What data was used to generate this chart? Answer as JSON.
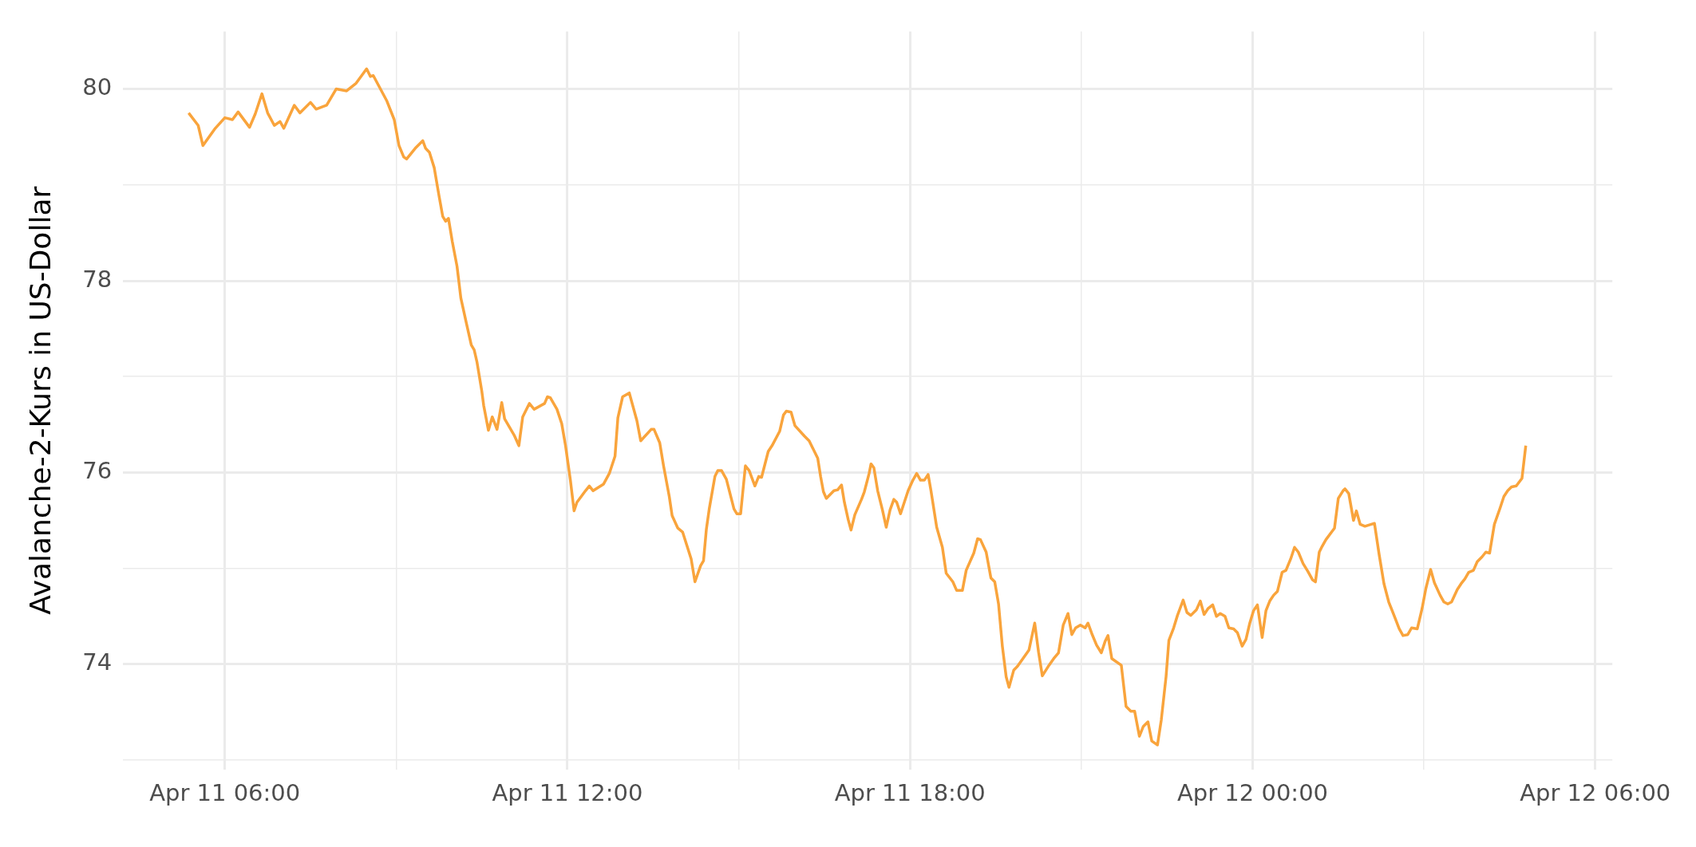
{
  "chart_data": {
    "type": "line",
    "ylabel": "Avalanche-2-Kurs in US-Dollar",
    "x": [
      "--04-11T05:22",
      "--04-11T05:32",
      "--04-11T05:37",
      "--04-11T05:50",
      "--04-11T06:00",
      "--04-11T06:08",
      "--04-11T06:14",
      "--04-11T06:26",
      "--04-11T06:32",
      "--04-11T06:39",
      "--04-11T06:45",
      "--04-11T06:52",
      "--04-11T06:58",
      "--04-11T07:02",
      "--04-11T07:13",
      "--04-11T07:19",
      "--04-11T07:30",
      "--04-11T07:36",
      "--04-11T07:47",
      "--04-11T07:57",
      "--04-11T08:08",
      "--04-11T08:18",
      "--04-11T08:29",
      "--04-11T08:33",
      "--04-11T08:36",
      "--04-11T08:50",
      "--04-11T08:58",
      "--04-11T09:03",
      "--04-11T09:08",
      "--04-11T09:11",
      "--04-11T09:20",
      "--04-11T09:28",
      "--04-11T09:31",
      "--04-11T09:35",
      "--04-11T09:40",
      "--04-11T09:45",
      "--04-11T09:49",
      "--04-11T09:52",
      "--04-11T09:55",
      "--04-11T09:59",
      "--04-11T10:04",
      "--04-11T10:08",
      "--04-11T10:14",
      "--04-11T10:19",
      "--04-11T10:22",
      "--04-11T10:25",
      "--04-11T10:30",
      "--04-11T10:32",
      "--04-11T10:37",
      "--04-11T10:41",
      "--04-11T10:46",
      "--04-11T10:51",
      "--04-11T10:54",
      "--04-11T11:04",
      "--04-11T11:09",
      "--04-11T11:13",
      "--04-11T11:20",
      "--04-11T11:25",
      "--04-11T11:36",
      "--04-11T11:39",
      "--04-11T11:42",
      "--04-11T11:49",
      "--04-11T11:54",
      "--04-11T11:58",
      "--04-11T12:03",
      "--04-11T12:07",
      "--04-11T12:10",
      "--04-11T12:19",
      "--04-11T12:23",
      "--04-11T12:27",
      "--04-11T12:38",
      "--04-11T12:44",
      "--04-11T12:50",
      "--04-11T12:53",
      "--04-11T12:58",
      "--04-11T13:05",
      "--04-11T13:13",
      "--04-11T13:17",
      "--04-11T13:28",
      "--04-11T13:31",
      "--04-11T13:37",
      "--04-11T13:41",
      "--04-11T13:47",
      "--04-11T13:50",
      "--04-11T13:56",
      "--04-11T14:01",
      "--04-11T14:10",
      "--04-11T14:14",
      "--04-11T14:20",
      "--04-11T14:23",
      "--04-11T14:26",
      "--04-11T14:29",
      "--04-11T14:35",
      "--04-11T14:38",
      "--04-11T14:42",
      "--04-11T14:47",
      "--04-11T14:55",
      "--04-11T14:58",
      "--04-11T15:02",
      "--04-11T15:07",
      "--04-11T15:11",
      "--04-11T15:17",
      "--04-11T15:21",
      "--04-11T15:24",
      "--04-11T15:31",
      "--04-11T15:35",
      "--04-11T15:43",
      "--04-11T15:47",
      "--04-11T15:50",
      "--04-11T15:55",
      "--04-11T15:59",
      "--04-11T16:09",
      "--04-11T16:14",
      "--04-11T16:23",
      "--04-11T16:26",
      "--04-11T16:29",
      "--04-11T16:32",
      "--04-11T16:40",
      "--04-11T16:44",
      "--04-11T16:48",
      "--04-11T16:51",
      "--04-11T16:55",
      "--04-11T16:58",
      "--04-11T17:02",
      "--04-11T17:09",
      "--04-11T17:12",
      "--04-11T17:17",
      "--04-11T17:19",
      "--04-11T17:22",
      "--04-11T17:26",
      "--04-11T17:31",
      "--04-11T17:35",
      "--04-11T17:39",
      "--04-11T17:43",
      "--04-11T17:46",
      "--04-11T17:50",
      "--04-11T17:58",
      "--04-11T18:03",
      "--04-11T18:07",
      "--04-11T18:11",
      "--04-11T18:15",
      "--04-11T18:19",
      "--04-11T18:22",
      "--04-11T18:28",
      "--04-11T18:34",
      "--04-11T18:38",
      "--04-11T18:45",
      "--04-11T18:49",
      "--04-11T18:55",
      "--04-11T18:59",
      "--04-11T19:07",
      "--04-11T19:11",
      "--04-11T19:14",
      "--04-11T19:20",
      "--04-11T19:25",
      "--04-11T19:29",
      "--04-11T19:33",
      "--04-11T19:37",
      "--04-11T19:41",
      "--04-11T19:44",
      "--04-11T19:49",
      "--04-11T19:53",
      "--04-11T20:05",
      "--04-11T20:11",
      "--04-11T20:15",
      "--04-11T20:19",
      "--04-11T20:26",
      "--04-11T20:31",
      "--04-11T20:36",
      "--04-11T20:41",
      "--04-11T20:46",
      "--04-11T20:50",
      "--04-11T20:54",
      "--04-11T20:59",
      "--04-11T21:04",
      "--04-11T21:07",
      "--04-11T21:11",
      "--04-11T21:16",
      "--04-11T21:21",
      "--04-11T21:25",
      "--04-11T21:28",
      "--04-11T21:32",
      "--04-11T21:42",
      "--04-11T21:47",
      "--04-11T21:52",
      "--04-11T21:56",
      "--04-11T22:01",
      "--04-11T22:05",
      "--04-11T22:10",
      "--04-11T22:14",
      "--04-11T22:20",
      "--04-11T22:24",
      "--04-11T22:29",
      "--04-11T22:32",
      "--04-11T22:37",
      "--04-11T22:41",
      "--04-11T22:47",
      "--04-11T22:51",
      "--04-11T22:55",
      "--04-11T23:01",
      "--04-11T23:05",
      "--04-11T23:09",
      "--04-11T23:13",
      "--04-11T23:18",
      "--04-11T23:22",
      "--04-11T23:26",
      "--04-11T23:31",
      "--04-11T23:35",
      "--04-11T23:40",
      "--04-11T23:44",
      "--04-11T23:49",
      "--04-11T23:53",
      "--04-11T23:57",
      "--04-12T00:01",
      "--04-12T00:05",
      "--04-12T00:10",
      "--04-12T00:14",
      "--04-12T00:18",
      "--04-12T00:22",
      "--04-12T00:26",
      "--04-12T00:31",
      "--04-12T00:35",
      "--04-12T00:40",
      "--04-12T00:44",
      "--04-12T00:48",
      "--04-12T00:53",
      "--04-12T00:58",
      "--04-12T01:03",
      "--04-12T01:06",
      "--04-12T01:10",
      "--04-12T01:13",
      "--04-12T01:17",
      "--04-12T01:23",
      "--04-12T01:26",
      "--04-12T01:30",
      "--04-12T01:35",
      "--04-12T01:37",
      "--04-12T01:41",
      "--04-12T01:46",
      "--04-12T01:49",
      "--04-12T01:53",
      "--04-12T01:58",
      "--04-12T02:08",
      "--04-12T02:13",
      "--04-12T02:18",
      "--04-12T02:23",
      "--04-12T02:29",
      "--04-12T02:34",
      "--04-12T02:38",
      "--04-12T02:43",
      "--04-12T02:47",
      "--04-12T02:53",
      "--04-12T02:58",
      "--04-12T03:02",
      "--04-12T03:07",
      "--04-12T03:11",
      "--04-12T03:17",
      "--04-12T03:21",
      "--04-12T03:25",
      "--04-12T03:29",
      "--04-12T03:35",
      "--04-12T03:39",
      "--04-12T03:43",
      "--04-12T03:47",
      "--04-12T03:52",
      "--04-12T03:56",
      "--04-12T04:01",
      "--04-12T04:05",
      "--04-12T04:09",
      "--04-12T04:14",
      "--04-12T04:20",
      "--04-12T04:24",
      "--04-12T04:28",
      "--04-12T04:32",
      "--04-12T04:37",
      "--04-12T04:43",
      "--04-12T04:47"
    ],
    "series": [
      {
        "color": "#f9a43c",
        "values": [
          79.75,
          79.62,
          79.41,
          79.59,
          79.7,
          79.68,
          79.76,
          79.6,
          79.74,
          79.95,
          79.75,
          79.62,
          79.66,
          79.59,
          79.83,
          79.75,
          79.86,
          79.79,
          79.83,
          80.0,
          79.98,
          80.06,
          80.21,
          80.13,
          80.14,
          79.88,
          79.68,
          79.41,
          79.29,
          79.27,
          79.38,
          79.46,
          79.38,
          79.34,
          79.18,
          78.89,
          78.67,
          78.62,
          78.65,
          78.41,
          78.15,
          77.82,
          77.55,
          77.33,
          77.28,
          77.15,
          76.85,
          76.7,
          76.44,
          76.58,
          76.45,
          76.73,
          76.56,
          76.39,
          76.28,
          76.58,
          76.72,
          76.66,
          76.72,
          76.79,
          76.78,
          76.66,
          76.51,
          76.28,
          75.93,
          75.6,
          75.69,
          75.81,
          75.86,
          75.81,
          75.88,
          75.99,
          76.17,
          76.57,
          76.79,
          76.83,
          76.54,
          76.33,
          76.45,
          76.45,
          76.31,
          76.07,
          75.75,
          75.55,
          75.42,
          75.38,
          75.1,
          74.86,
          75.03,
          75.08,
          75.41,
          75.62,
          75.96,
          76.02,
          76.02,
          75.93,
          75.62,
          75.57,
          75.57,
          76.07,
          76.02,
          75.86,
          75.96,
          75.95,
          76.22,
          76.28,
          76.43,
          76.6,
          76.64,
          76.63,
          76.49,
          76.38,
          76.33,
          76.15,
          75.96,
          75.8,
          75.73,
          75.81,
          75.82,
          75.87,
          75.69,
          75.51,
          75.4,
          75.56,
          75.72,
          75.8,
          75.99,
          76.09,
          76.05,
          75.81,
          75.61,
          75.43,
          75.61,
          75.72,
          75.69,
          75.57,
          75.81,
          75.92,
          75.99,
          75.92,
          75.92,
          75.98,
          75.81,
          75.43,
          75.22,
          74.95,
          74.86,
          74.77,
          74.77,
          74.98,
          75.16,
          75.31,
          75.3,
          75.17,
          74.9,
          74.86,
          74.63,
          74.19,
          73.87,
          73.76,
          73.94,
          73.98,
          74.15,
          74.43,
          74.13,
          73.88,
          73.99,
          74.06,
          74.12,
          74.41,
          74.53,
          74.31,
          74.38,
          74.41,
          74.38,
          74.43,
          74.32,
          74.2,
          74.12,
          74.24,
          74.3,
          74.06,
          73.99,
          73.56,
          73.51,
          73.51,
          73.25,
          73.35,
          73.4,
          73.2,
          73.16,
          73.42,
          73.87,
          74.25,
          74.38,
          74.51,
          74.67,
          74.54,
          74.51,
          74.57,
          74.66,
          74.52,
          74.58,
          74.62,
          74.5,
          74.53,
          74.5,
          74.38,
          74.37,
          74.33,
          74.19,
          74.26,
          74.43,
          74.56,
          74.62,
          74.28,
          74.56,
          74.66,
          74.72,
          74.76,
          74.96,
          74.98,
          75.1,
          75.22,
          75.17,
          75.05,
          74.97,
          74.88,
          74.86,
          75.17,
          75.23,
          75.3,
          75.38,
          75.42,
          75.73,
          75.81,
          75.83,
          75.78,
          75.5,
          75.6,
          75.46,
          75.44,
          75.47,
          75.14,
          74.84,
          74.65,
          74.5,
          74.37,
          74.3,
          74.31,
          74.38,
          74.37,
          74.58,
          74.79,
          74.99,
          74.85,
          74.72,
          74.65,
          74.63,
          74.65,
          74.78,
          74.84,
          74.89,
          74.96,
          74.98,
          75.07,
          75.12,
          75.17,
          75.16,
          75.46,
          75.63,
          75.75,
          75.81,
          75.85,
          75.86,
          75.94,
          76.28
        ]
      }
    ],
    "xlim": [
      "--04-11T04:13",
      "--04-12T06:18"
    ],
    "ylim": [
      72.9,
      80.6
    ],
    "xticks": [
      {
        "value": "--04-11T06:00",
        "label": "Apr 11 06:00"
      },
      {
        "value": "--04-11T09:00",
        "label": null
      },
      {
        "value": "--04-11T12:00",
        "label": "Apr 11 12:00"
      },
      {
        "value": "--04-11T15:00",
        "label": null
      },
      {
        "value": "--04-11T18:00",
        "label": "Apr 11 18:00"
      },
      {
        "value": "--04-11T21:00",
        "label": null
      },
      {
        "value": "--04-12T00:00",
        "label": "Apr 12 00:00"
      },
      {
        "value": "--04-12T03:00",
        "label": null
      },
      {
        "value": "--04-12T06:00",
        "label": "Apr 12 06:00"
      }
    ],
    "yticks": [
      {
        "value": 73,
        "label": null
      },
      74,
      {
        "value": 75,
        "label": null
      },
      76,
      {
        "value": 77,
        "label": null
      },
      78,
      {
        "value": 79,
        "label": null
      },
      80
    ],
    "grid": true,
    "legend": false,
    "marker": "none",
    "line_style": "solid"
  }
}
